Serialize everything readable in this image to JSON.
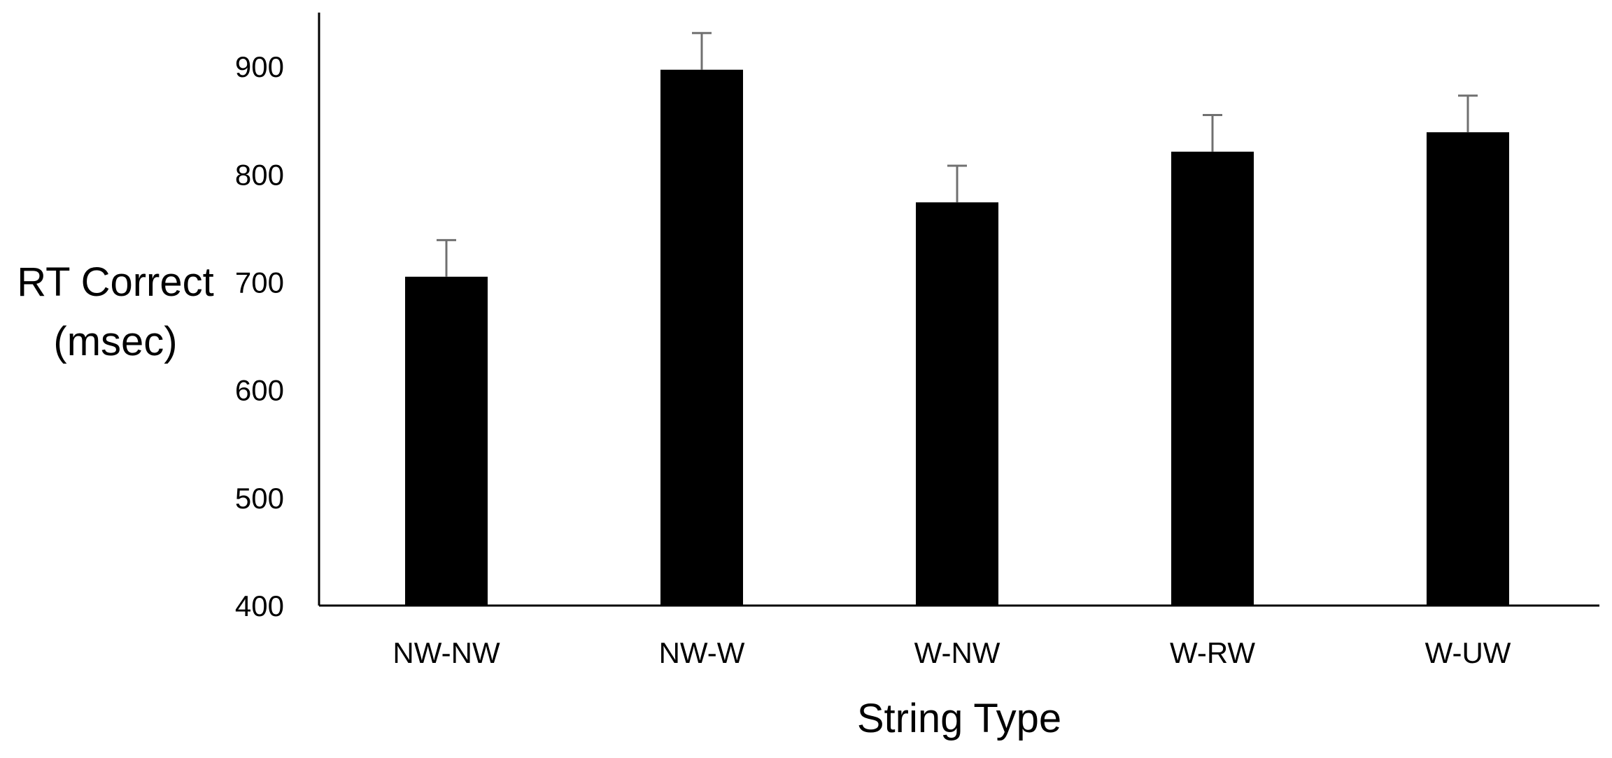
{
  "chart_data": {
    "type": "bar",
    "title": "",
    "xlabel": "String Type",
    "ylabel_lines": [
      "RT Correct",
      "(msec)"
    ],
    "categories": [
      "NW-NW",
      "NW-W",
      "W-NW",
      "W-RW",
      "W-UW"
    ],
    "values": [
      705,
      897,
      774,
      821,
      839
    ],
    "error_upper": [
      34,
      34,
      34,
      34,
      34
    ],
    "ylim": [
      400,
      950
    ],
    "yticks": [
      400,
      500,
      600,
      700,
      800,
      900
    ],
    "grid": false,
    "legend": "none",
    "colors": {
      "bar": "#000000",
      "error_bar": "#707070",
      "axis": "#000000"
    }
  }
}
